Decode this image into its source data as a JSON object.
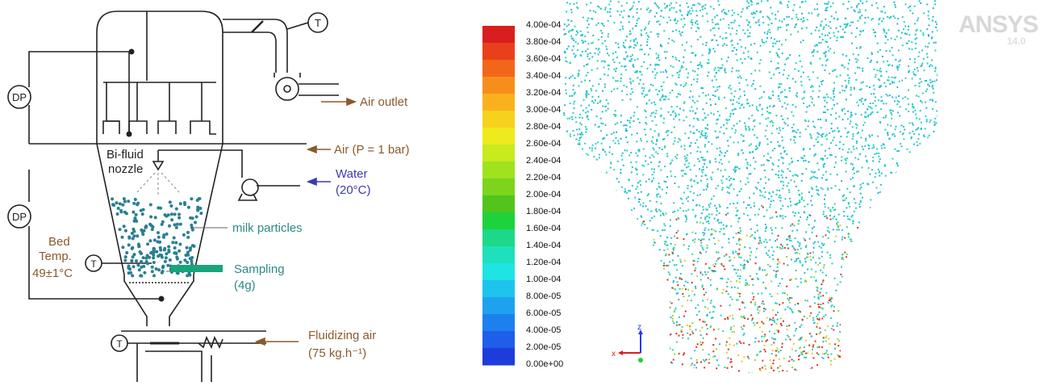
{
  "schematic": {
    "dp_top": "DP",
    "dp_bottom": "DP",
    "temp_symbol": "T",
    "air_outlet": "Air outlet",
    "air_inlet": "Air (P = 1 bar)",
    "nozzle_line1": "Bi-fluid",
    "nozzle_line2": "nozzle",
    "water_line1": "Water",
    "water_line2": "(20°C)",
    "milk_particles": "milk particles",
    "bed_line1": "Bed",
    "bed_line2": "Temp.",
    "bed_line3": "49±1°C",
    "sampling_line1": "Sampling",
    "sampling_line2": "(4g)",
    "fluid_line1": "Fluidizing air",
    "fluid_line2": "(75 kg.h⁻¹)"
  },
  "cfd": {
    "logo": "ANSYS",
    "version": "14.0",
    "axis_x": "x",
    "axis_z": "z",
    "colorbar": {
      "ticks": [
        "4.00e-04",
        "3.80e-04",
        "3.60e-04",
        "3.40e-04",
        "3.20e-04",
        "3.00e-04",
        "2.80e-04",
        "2.60e-04",
        "2.40e-04",
        "2.20e-04",
        "2.00e-04",
        "1.80e-04",
        "1.60e-04",
        "1.40e-04",
        "1.20e-04",
        "1.00e-04",
        "8.00e-05",
        "6.00e-05",
        "4.00e-05",
        "2.00e-05",
        "0.00e+00"
      ],
      "colors": [
        "#d81e1e",
        "#e9401c",
        "#f2661a",
        "#f78e1c",
        "#fbb11e",
        "#f7d21c",
        "#eeea1c",
        "#c8ea1e",
        "#a0e21e",
        "#7cd41c",
        "#52c41c",
        "#1ed23c",
        "#1ed88a",
        "#1ee0bc",
        "#1ee4e4",
        "#1ec4ee",
        "#1ea2f0",
        "#1e80ee",
        "#1e5ee8",
        "#1e3cdc"
      ]
    },
    "particle_colors": [
      "#30c9c0",
      "#22b8d8",
      "#28d2b8",
      "#d9361f",
      "#e8c72a",
      "#8fd83a"
    ]
  }
}
